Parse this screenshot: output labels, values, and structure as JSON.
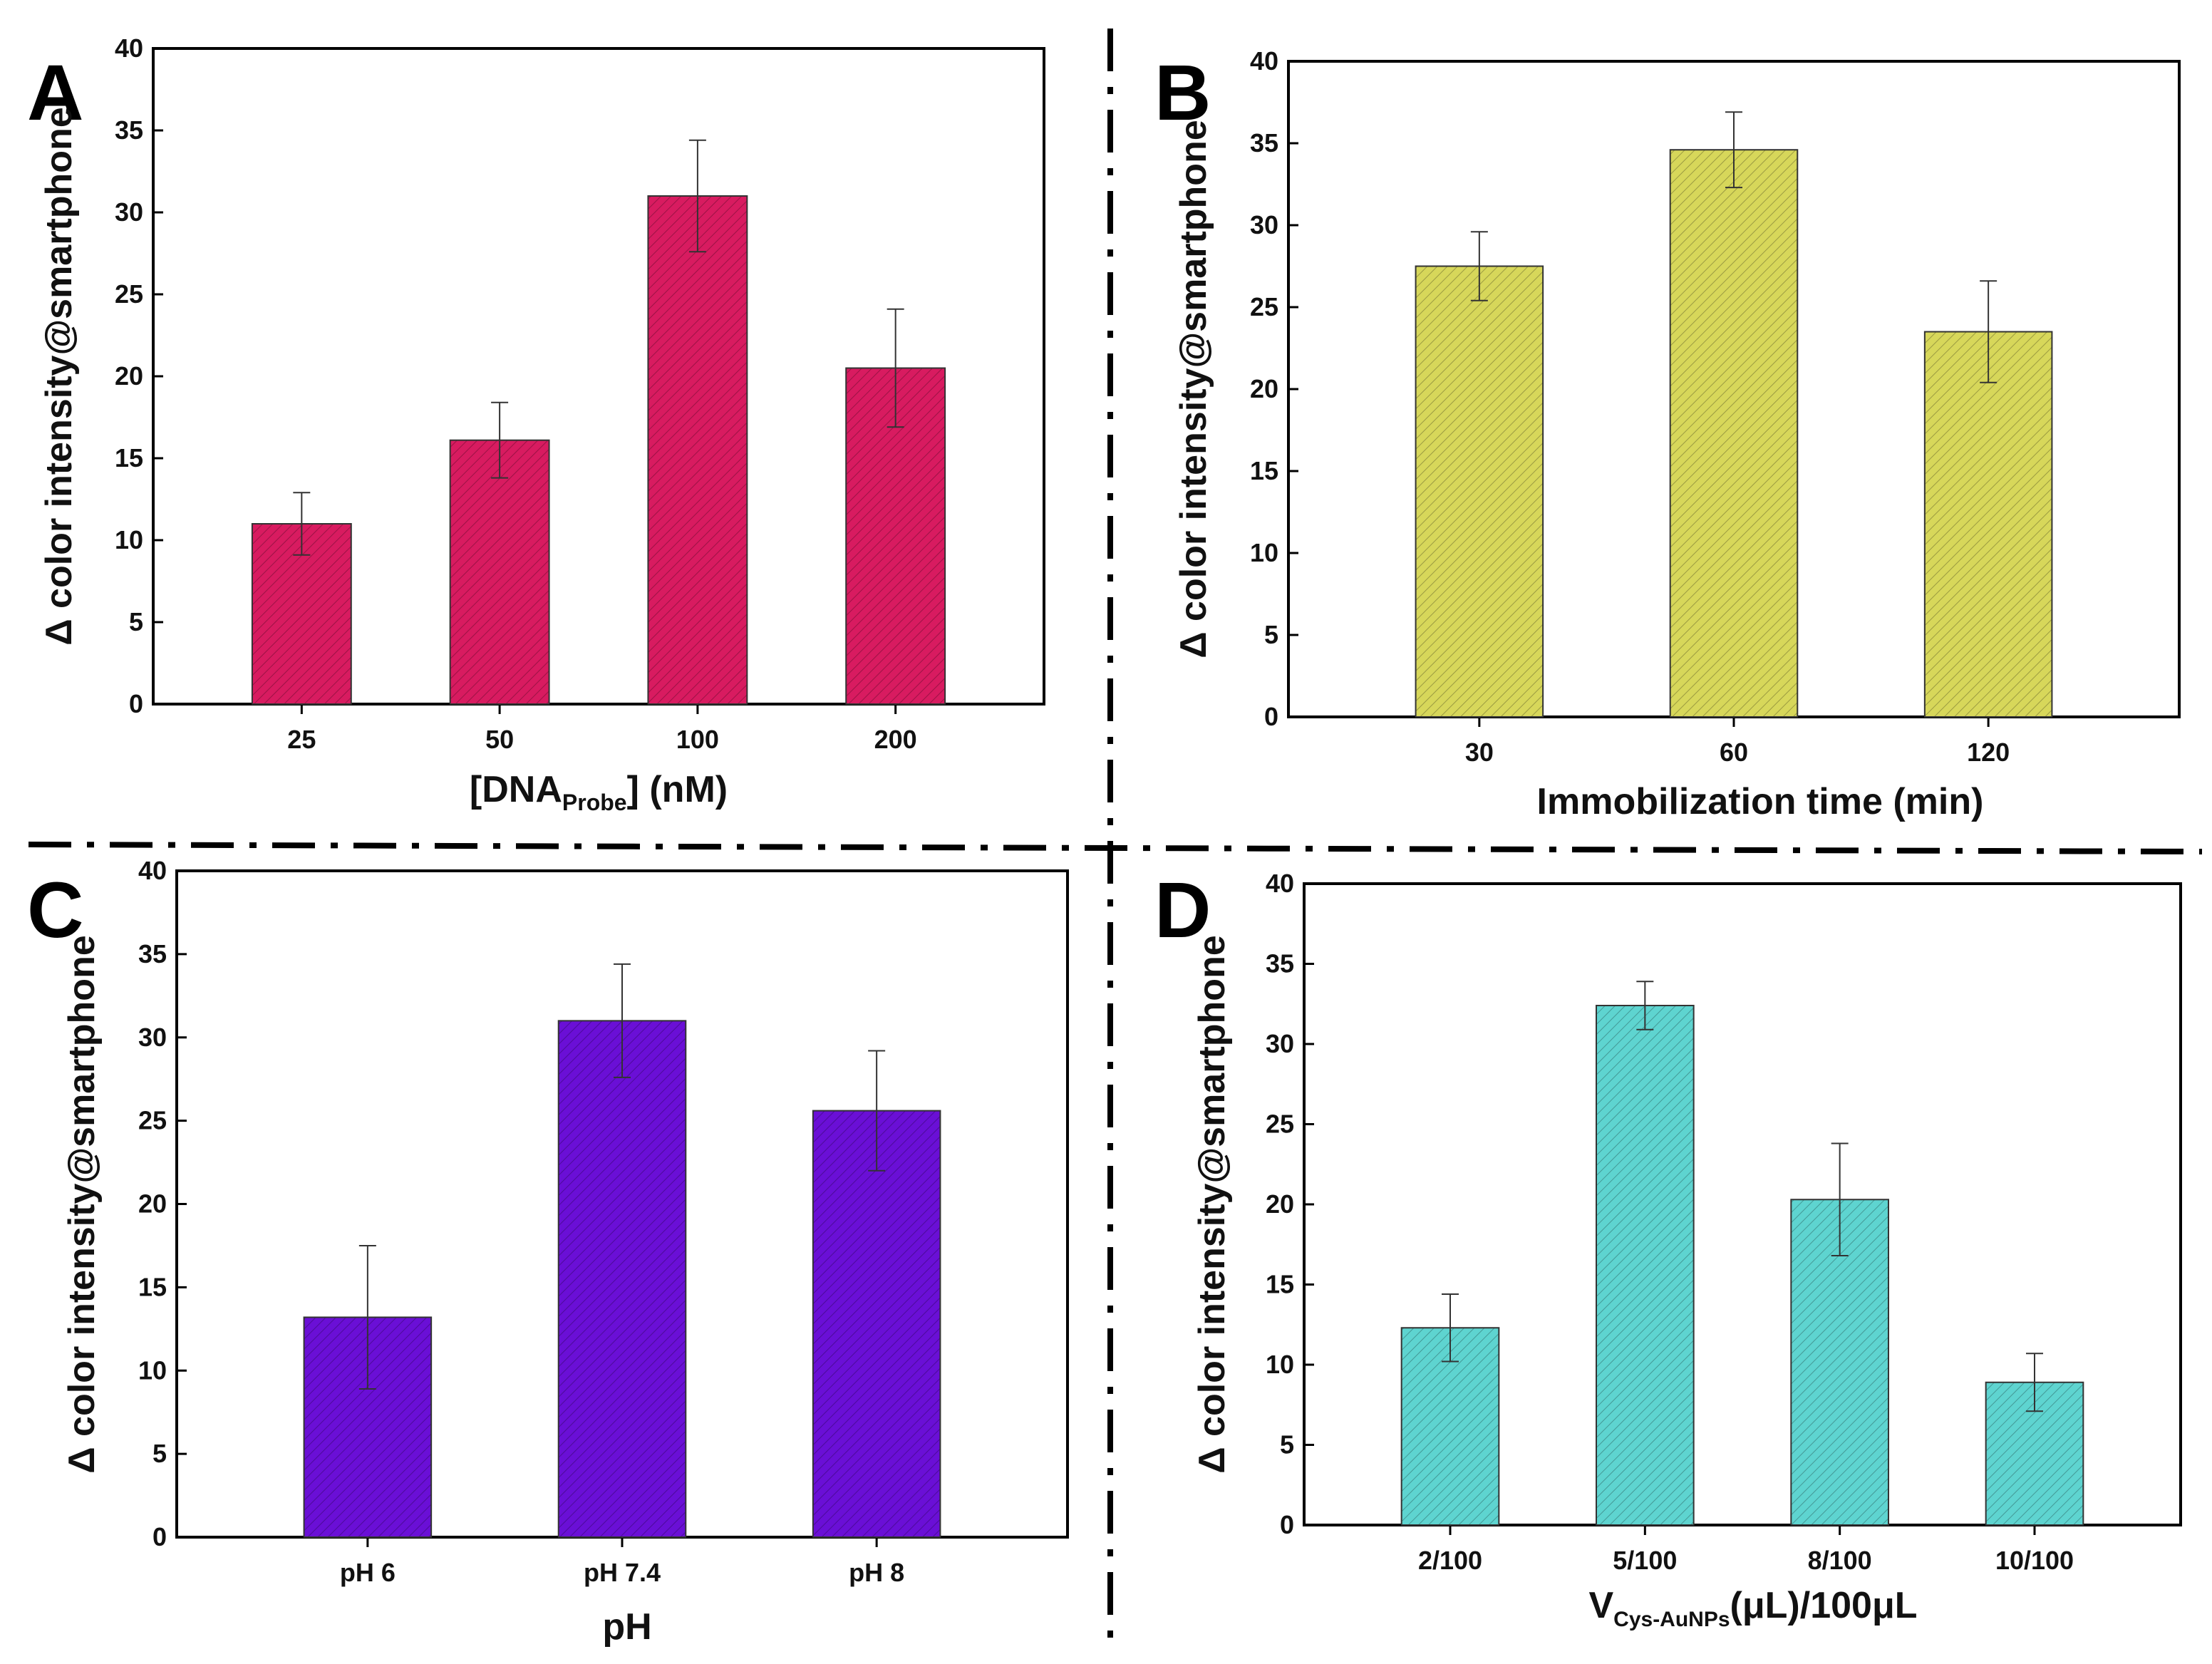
{
  "figure": {
    "colors": {
      "A": "#d81b60",
      "B": "#d7d75a",
      "C": "#6a0fd6",
      "D": "#5ed4d0"
    }
  },
  "chart_data": [
    {
      "panel": "A",
      "type": "bar",
      "categories": [
        "25",
        "50",
        "100",
        "200"
      ],
      "values": [
        11,
        16.1,
        31,
        20.5
      ],
      "errors": [
        1.9,
        2.3,
        3.4,
        3.6
      ],
      "ylabel": "Δ color intensity@smartphone",
      "xlabel_main": "[DNA",
      "xlabel_sub": "Probe",
      "xlabel_tail": "] (nM)",
      "ylim": [
        0,
        40
      ],
      "yticks": [
        "0",
        "5",
        "10",
        "15",
        "20",
        "25",
        "30",
        "35",
        "40"
      ]
    },
    {
      "panel": "B",
      "type": "bar",
      "categories": [
        "30",
        "60",
        "120"
      ],
      "values": [
        27.5,
        34.6,
        23.5
      ],
      "errors": [
        2.1,
        2.3,
        3.1
      ],
      "ylabel": "Δ color intensity@smartphone",
      "xlabel_main": "Immobilization time (min)",
      "xlabel_sub": "",
      "xlabel_tail": "",
      "ylim": [
        0,
        40
      ],
      "yticks": [
        "0",
        "5",
        "10",
        "15",
        "20",
        "25",
        "30",
        "35",
        "40"
      ]
    },
    {
      "panel": "C",
      "type": "bar",
      "categories": [
        "pH 6",
        "pH 7.4",
        "pH 8"
      ],
      "values": [
        13.2,
        31,
        25.6
      ],
      "errors": [
        4.3,
        3.4,
        3.6
      ],
      "ylabel": "Δ color intensity@smartphone",
      "xlabel_main": "pH",
      "xlabel_sub": "",
      "xlabel_tail": "",
      "ylim": [
        0,
        40
      ],
      "yticks": [
        "0",
        "5",
        "10",
        "15",
        "20",
        "25",
        "30",
        "35",
        "40"
      ]
    },
    {
      "panel": "D",
      "type": "bar",
      "categories": [
        "2/100",
        "5/100",
        "8/100",
        "10/100"
      ],
      "values": [
        12.3,
        32.4,
        20.3,
        8.9
      ],
      "errors": [
        2.1,
        1.5,
        3.5,
        1.8
      ],
      "ylabel": "Δ color intensity@smartphone",
      "xlabel_main": "V",
      "xlabel_sub": "Cys-AuNPs",
      "xlabel_tail": "(μL)/100μL",
      "ylim": [
        0,
        40
      ],
      "yticks": [
        "0",
        "5",
        "10",
        "15",
        "20",
        "25",
        "30",
        "35",
        "40"
      ]
    }
  ]
}
